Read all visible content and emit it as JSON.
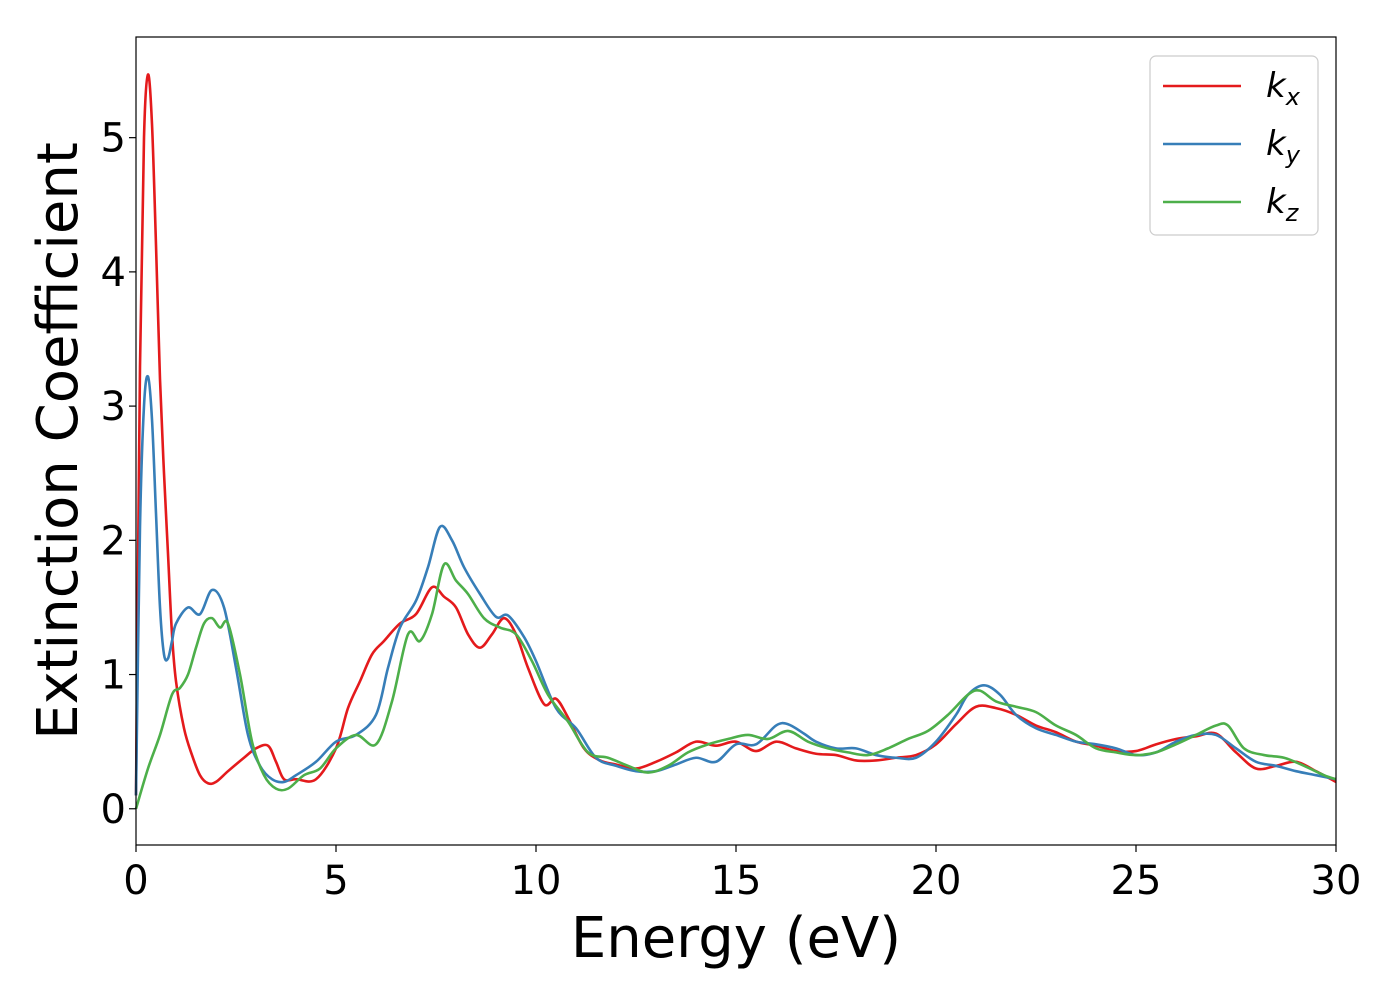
{
  "chart_data": {
    "type": "line",
    "title": "",
    "xlabel": "Energy (eV)",
    "ylabel": "Extinction Coefficient",
    "xlim": [
      0,
      30
    ],
    "ylim": [
      -0.27,
      5.75
    ],
    "xticks": [
      0,
      5,
      10,
      15,
      20,
      25,
      30
    ],
    "yticks": [
      0,
      1,
      2,
      3,
      4,
      5
    ],
    "grid": false,
    "legend_position": "top-right",
    "series": [
      {
        "name": "k_x",
        "label_main": "k",
        "label_sub": "x",
        "color": "#e41a1c",
        "x": [
          0,
          0.1,
          0.2,
          0.3,
          0.4,
          0.5,
          0.6,
          0.7,
          0.8,
          0.9,
          1.0,
          1.2,
          1.4,
          1.6,
          1.8,
          2.0,
          2.3,
          2.7,
          3.0,
          3.3,
          3.5,
          3.7,
          4.0,
          4.5,
          5.0,
          5.3,
          5.6,
          5.9,
          6.2,
          6.6,
          7.0,
          7.4,
          7.7,
          8.0,
          8.3,
          8.6,
          8.9,
          9.2,
          9.5,
          9.8,
          10.2,
          10.5,
          10.8,
          11.2,
          11.6,
          12.0,
          12.5,
          13.0,
          13.5,
          14.0,
          14.5,
          15.0,
          15.5,
          16.0,
          16.5,
          17.0,
          17.5,
          18.0,
          18.5,
          19.0,
          19.5,
          20.0,
          20.5,
          21.0,
          21.5,
          22.0,
          22.5,
          23.0,
          23.5,
          24.0,
          24.5,
          25.0,
          25.5,
          26.0,
          26.5,
          27.0,
          27.5,
          28.0,
          28.5,
          29.0,
          29.5,
          30.0
        ],
        "y": [
          0.1,
          3.3,
          5.0,
          5.47,
          5.1,
          4.2,
          3.2,
          2.5,
          1.9,
          1.3,
          0.95,
          0.6,
          0.4,
          0.25,
          0.19,
          0.2,
          0.28,
          0.38,
          0.45,
          0.47,
          0.35,
          0.22,
          0.22,
          0.22,
          0.45,
          0.75,
          0.95,
          1.15,
          1.25,
          1.38,
          1.45,
          1.65,
          1.58,
          1.5,
          1.3,
          1.2,
          1.3,
          1.42,
          1.3,
          1.05,
          0.78,
          0.82,
          0.68,
          0.45,
          0.36,
          0.33,
          0.3,
          0.35,
          0.42,
          0.5,
          0.47,
          0.5,
          0.43,
          0.5,
          0.45,
          0.41,
          0.4,
          0.36,
          0.36,
          0.38,
          0.4,
          0.48,
          0.63,
          0.76,
          0.75,
          0.7,
          0.62,
          0.57,
          0.5,
          0.47,
          0.43,
          0.43,
          0.48,
          0.52,
          0.54,
          0.56,
          0.42,
          0.3,
          0.32,
          0.35,
          0.28,
          0.2
        ]
      },
      {
        "name": "k_y",
        "label_main": "k",
        "label_sub": "y",
        "color": "#377eb8",
        "x": [
          0,
          0.1,
          0.2,
          0.3,
          0.4,
          0.5,
          0.6,
          0.7,
          0.8,
          0.9,
          1.0,
          1.3,
          1.6,
          1.9,
          2.2,
          2.5,
          2.8,
          3.1,
          3.4,
          3.7,
          4.0,
          4.5,
          5.0,
          5.5,
          6.0,
          6.3,
          6.6,
          7.0,
          7.3,
          7.6,
          7.9,
          8.2,
          8.6,
          9.0,
          9.3,
          9.7,
          10.0,
          10.5,
          11.0,
          11.5,
          12.0,
          12.5,
          13.0,
          13.5,
          14.0,
          14.5,
          15.0,
          15.5,
          16.0,
          16.3,
          16.7,
          17.0,
          17.5,
          18.0,
          18.5,
          19.0,
          19.5,
          20.0,
          20.5,
          20.8,
          21.2,
          21.6,
          22.0,
          22.5,
          23.0,
          23.5,
          24.0,
          24.5,
          25.0,
          25.5,
          26.0,
          26.5,
          27.0,
          27.5,
          28.0,
          28.5,
          29.0,
          29.5,
          30.0
        ],
        "y": [
          0.1,
          2.1,
          3.0,
          3.22,
          2.9,
          2.2,
          1.5,
          1.15,
          1.12,
          1.25,
          1.38,
          1.5,
          1.45,
          1.63,
          1.5,
          1.05,
          0.55,
          0.32,
          0.22,
          0.2,
          0.25,
          0.35,
          0.5,
          0.55,
          0.7,
          1.05,
          1.35,
          1.55,
          1.8,
          2.1,
          2.0,
          1.8,
          1.6,
          1.43,
          1.44,
          1.28,
          1.1,
          0.75,
          0.6,
          0.38,
          0.32,
          0.28,
          0.28,
          0.33,
          0.38,
          0.35,
          0.48,
          0.48,
          0.62,
          0.63,
          0.56,
          0.5,
          0.45,
          0.45,
          0.4,
          0.38,
          0.38,
          0.5,
          0.7,
          0.85,
          0.92,
          0.85,
          0.7,
          0.6,
          0.55,
          0.5,
          0.48,
          0.45,
          0.4,
          0.42,
          0.5,
          0.55,
          0.55,
          0.45,
          0.35,
          0.32,
          0.28,
          0.25,
          0.22
        ]
      },
      {
        "name": "k_z",
        "label_main": "k",
        "label_sub": "z",
        "color": "#4daf4a",
        "x": [
          0,
          0.3,
          0.6,
          0.9,
          1.1,
          1.3,
          1.5,
          1.7,
          1.9,
          2.1,
          2.3,
          2.6,
          2.9,
          3.2,
          3.5,
          3.8,
          4.2,
          4.6,
          5.0,
          5.5,
          6.0,
          6.4,
          6.8,
          7.1,
          7.4,
          7.7,
          8.0,
          8.3,
          8.7,
          9.1,
          9.5,
          9.9,
          10.3,
          10.8,
          11.3,
          11.8,
          12.3,
          12.8,
          13.3,
          13.8,
          14.3,
          14.8,
          15.3,
          15.8,
          16.3,
          16.8,
          17.3,
          17.8,
          18.3,
          18.8,
          19.3,
          19.8,
          20.3,
          20.8,
          21.1,
          21.5,
          22.0,
          22.5,
          23.0,
          23.5,
          24.0,
          24.5,
          25.0,
          25.5,
          26.0,
          26.5,
          27.0,
          27.3,
          27.7,
          28.2,
          28.7,
          29.2,
          29.7,
          30.0
        ],
        "y": [
          0.0,
          0.3,
          0.55,
          0.85,
          0.9,
          1.0,
          1.2,
          1.38,
          1.42,
          1.35,
          1.38,
          1.0,
          0.5,
          0.25,
          0.15,
          0.15,
          0.25,
          0.3,
          0.45,
          0.55,
          0.48,
          0.8,
          1.3,
          1.25,
          1.45,
          1.82,
          1.7,
          1.6,
          1.42,
          1.35,
          1.3,
          1.1,
          0.85,
          0.65,
          0.42,
          0.38,
          0.32,
          0.27,
          0.32,
          0.42,
          0.48,
          0.52,
          0.55,
          0.52,
          0.58,
          0.5,
          0.45,
          0.42,
          0.4,
          0.45,
          0.52,
          0.58,
          0.7,
          0.85,
          0.88,
          0.8,
          0.76,
          0.72,
          0.62,
          0.55,
          0.45,
          0.42,
          0.4,
          0.42,
          0.48,
          0.55,
          0.62,
          0.62,
          0.45,
          0.4,
          0.38,
          0.32,
          0.25,
          0.22
        ]
      }
    ]
  }
}
